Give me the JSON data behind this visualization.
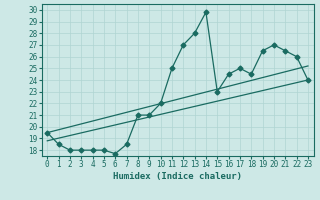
{
  "title": "",
  "xlabel": "Humidex (Indice chaleur)",
  "ylabel": "",
  "xlim": [
    -0.5,
    23.5
  ],
  "ylim": [
    17.5,
    30.5
  ],
  "xticks": [
    0,
    1,
    2,
    3,
    4,
    5,
    6,
    7,
    8,
    9,
    10,
    11,
    12,
    13,
    14,
    15,
    16,
    17,
    18,
    19,
    20,
    21,
    22,
    23
  ],
  "yticks": [
    18,
    19,
    20,
    21,
    22,
    23,
    24,
    25,
    26,
    27,
    28,
    29,
    30
  ],
  "bg_color": "#cde8e6",
  "line_color": "#1a6b61",
  "grid_color": "#b0d5d2",
  "main_x": [
    0,
    1,
    2,
    3,
    4,
    5,
    6,
    7,
    8,
    9,
    10,
    11,
    12,
    13,
    14,
    15,
    16,
    17,
    18,
    19,
    20,
    21,
    22,
    23
  ],
  "main_y": [
    19.5,
    18.5,
    18.0,
    18.0,
    18.0,
    18.0,
    17.7,
    18.5,
    21.0,
    21.0,
    22.0,
    25.0,
    27.0,
    28.0,
    29.8,
    23.0,
    24.5,
    25.0,
    24.5,
    26.5,
    27.0,
    26.5,
    26.0,
    24.0
  ],
  "trend1_x": [
    0,
    23
  ],
  "trend1_y": [
    18.8,
    24.0
  ],
  "trend2_x": [
    0,
    23
  ],
  "trend2_y": [
    19.5,
    25.2
  ],
  "marker": "D",
  "markersize": 2.5,
  "linewidth": 0.9,
  "tick_fontsize": 5.5,
  "xlabel_fontsize": 6.5
}
